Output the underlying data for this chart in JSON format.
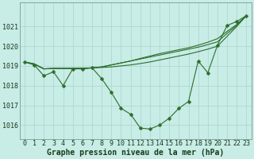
{
  "xlabel": "Graphe pression niveau de la mer (hPa)",
  "background_color": "#c8ece6",
  "grid_color": "#b0d8d0",
  "line_color": "#2d6e2d",
  "marker_color": "#2d6e2d",
  "x_values": [
    0,
    1,
    2,
    3,
    4,
    5,
    6,
    7,
    8,
    9,
    10,
    11,
    12,
    13,
    14,
    15,
    16,
    17,
    18,
    19,
    20,
    21,
    22,
    23
  ],
  "y_main": [
    1019.2,
    1019.05,
    1018.5,
    1018.7,
    1018.0,
    1018.85,
    1018.85,
    1018.9,
    1018.35,
    1017.65,
    1016.85,
    1016.55,
    1015.85,
    1015.8,
    1016.0,
    1016.35,
    1016.85,
    1017.2,
    1019.25,
    1018.65,
    1020.05,
    1021.05,
    1021.25,
    1021.55
  ],
  "y_line1": [
    1019.2,
    1019.1,
    1018.85,
    1018.87,
    1018.87,
    1018.87,
    1018.88,
    1018.9,
    1018.92,
    1018.95,
    1019.0,
    1019.05,
    1019.12,
    1019.2,
    1019.3,
    1019.4,
    1019.5,
    1019.6,
    1019.72,
    1019.85,
    1020.0,
    1020.5,
    1021.0,
    1021.55
  ],
  "y_line2": [
    1019.2,
    1019.1,
    1018.85,
    1018.87,
    1018.87,
    1018.87,
    1018.88,
    1018.9,
    1018.95,
    1019.05,
    1019.15,
    1019.25,
    1019.38,
    1019.5,
    1019.62,
    1019.72,
    1019.82,
    1019.92,
    1020.05,
    1020.2,
    1020.38,
    1020.75,
    1021.1,
    1021.55
  ],
  "y_line3": [
    1019.2,
    1019.1,
    1018.85,
    1018.87,
    1018.87,
    1018.87,
    1018.88,
    1018.9,
    1018.95,
    1019.05,
    1019.15,
    1019.25,
    1019.35,
    1019.45,
    1019.55,
    1019.65,
    1019.75,
    1019.85,
    1019.95,
    1020.08,
    1020.22,
    1020.65,
    1021.05,
    1021.55
  ],
  "ylim": [
    1015.3,
    1022.2
  ],
  "yticks": [
    1016,
    1017,
    1018,
    1019,
    1020,
    1021
  ],
  "xticks": [
    0,
    1,
    2,
    3,
    4,
    5,
    6,
    7,
    8,
    9,
    10,
    11,
    12,
    13,
    14,
    15,
    16,
    17,
    18,
    19,
    20,
    21,
    22,
    23
  ],
  "xlabel_fontsize": 7,
  "tick_fontsize": 6,
  "marker_size": 2.5,
  "linewidth": 0.8
}
